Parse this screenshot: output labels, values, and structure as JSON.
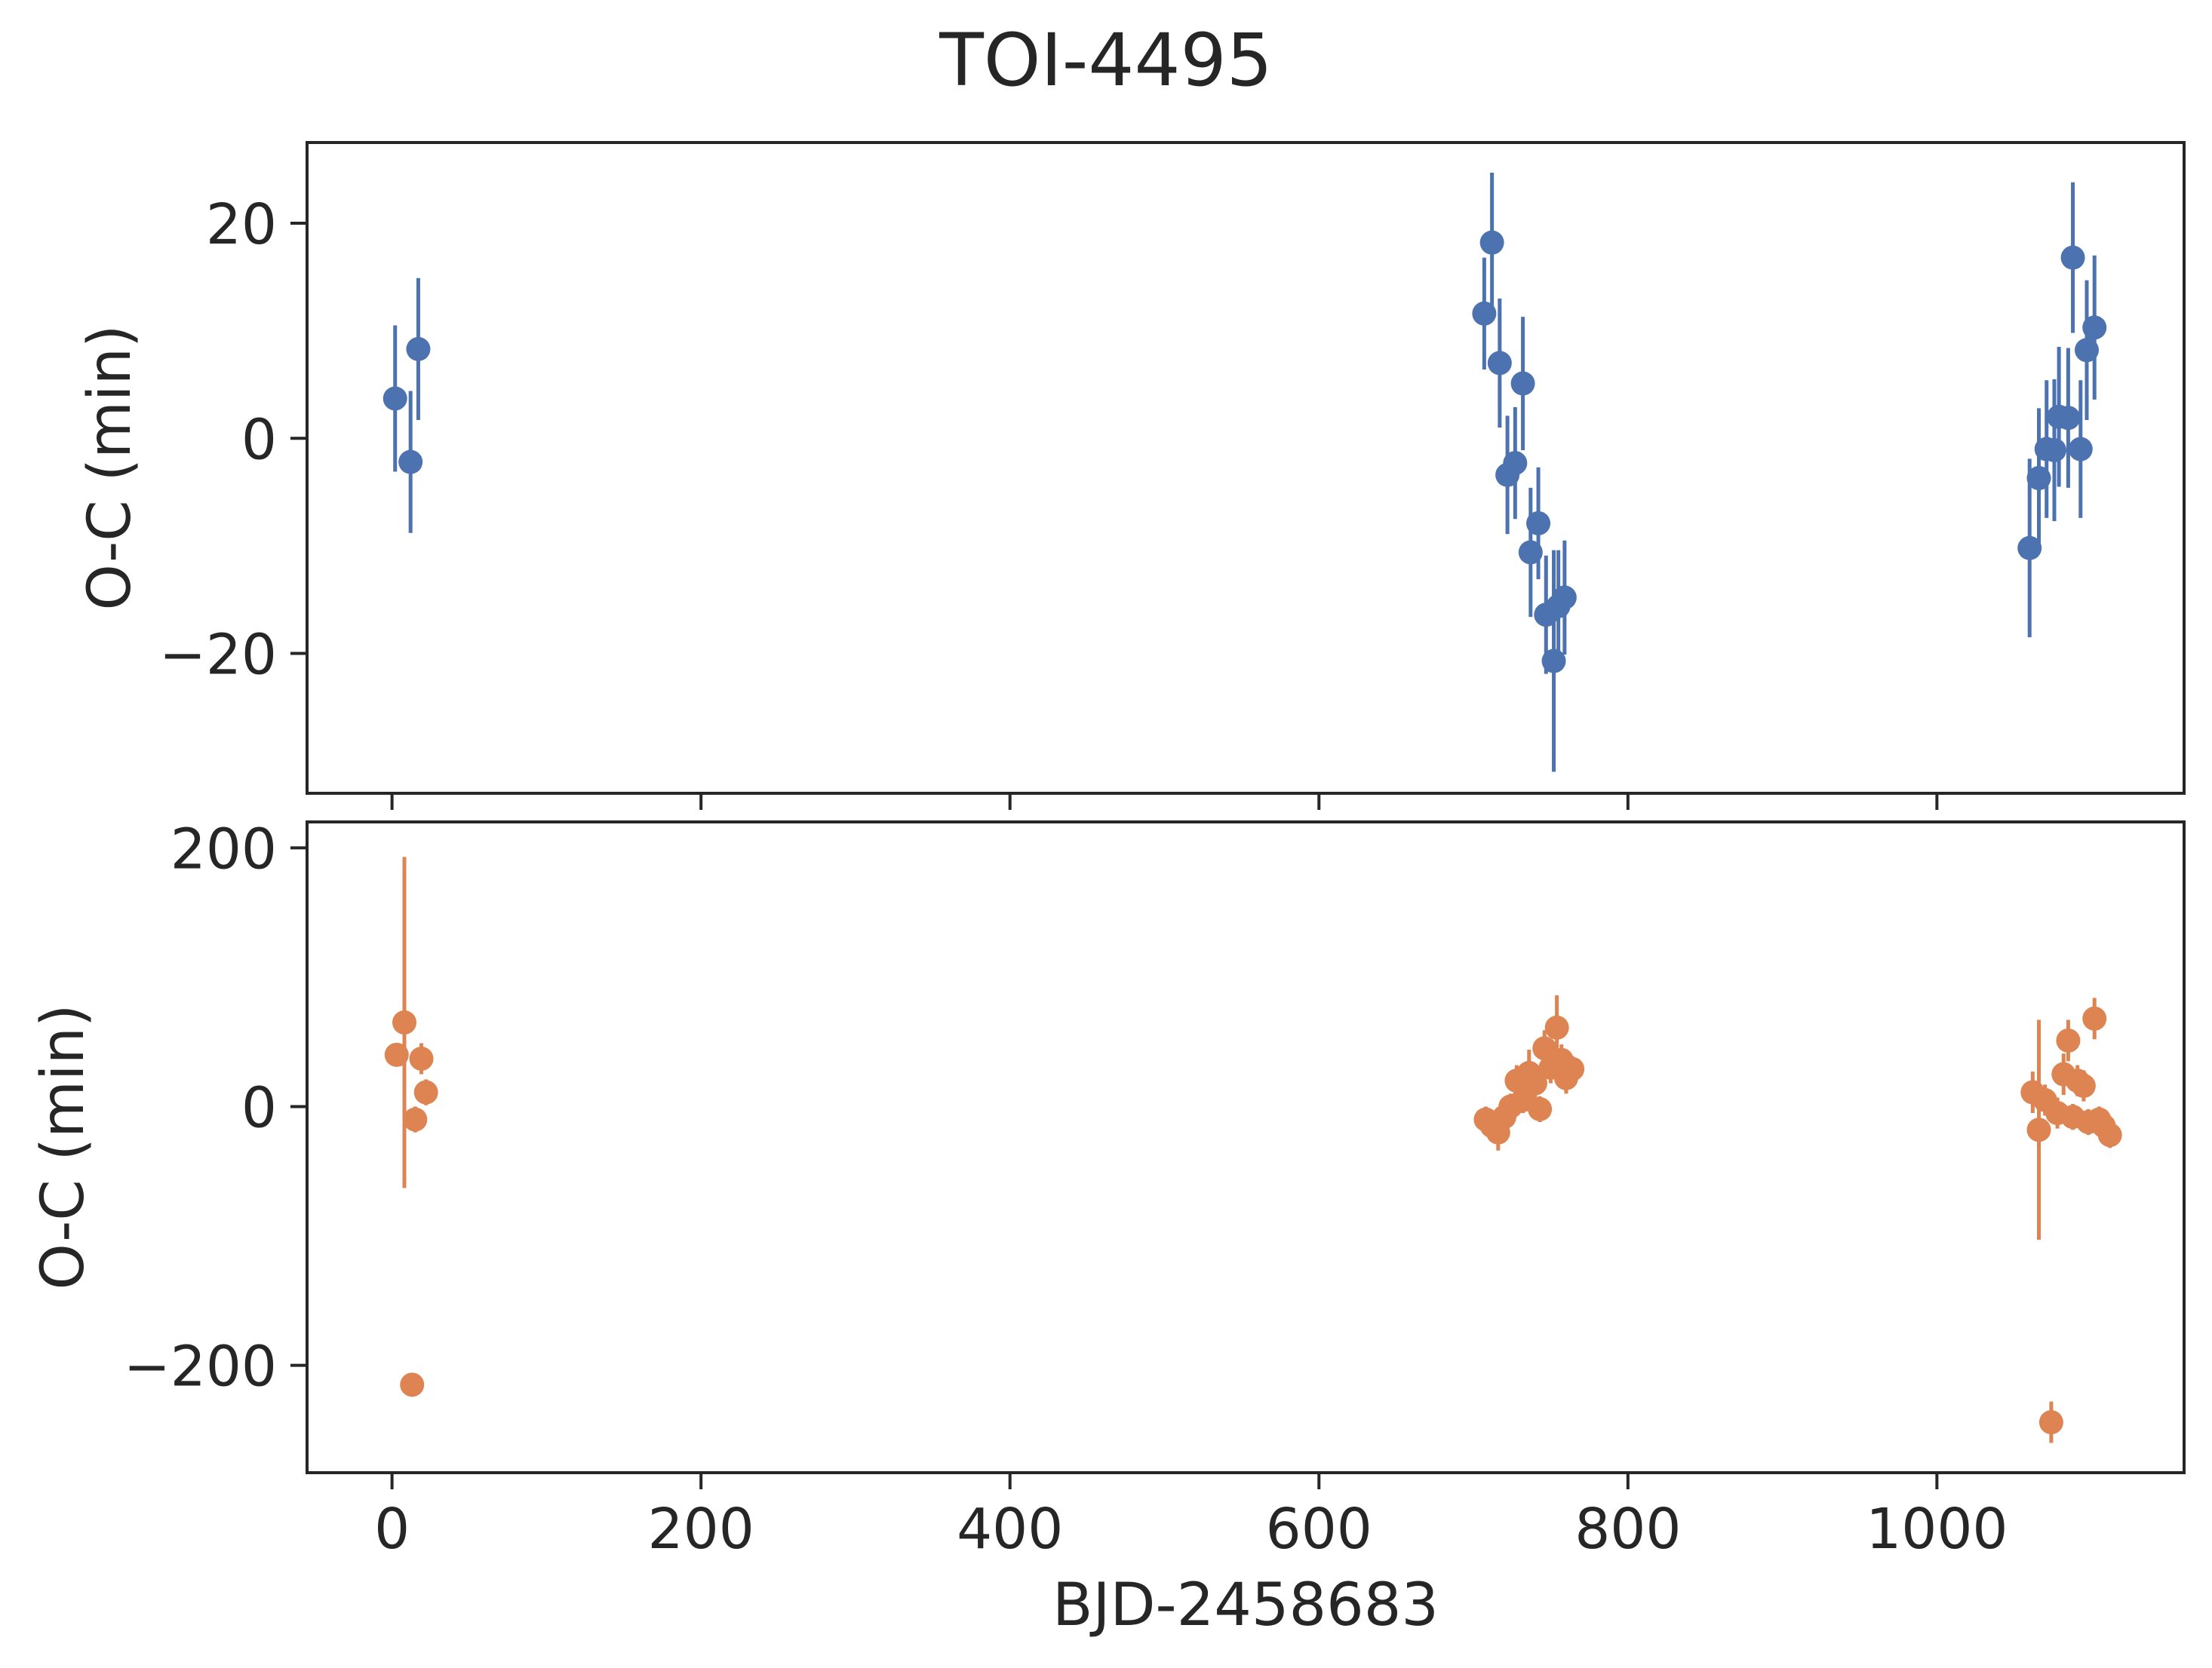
{
  "chart_data": {
    "type": "scatter",
    "title": "TOI-4495",
    "xlabel": "BJD-2458683",
    "xlim": [
      -55,
      1160
    ],
    "x_ticks": [
      0,
      200,
      400,
      600,
      800,
      1000
    ],
    "panels": [
      {
        "name": "top",
        "ylabel": "O-C (min)",
        "ylim": [
          -33,
          27.5
        ],
        "y_ticks": [
          20,
          0,
          -20
        ],
        "y_tick_labels": [
          "20",
          "0",
          "−20"
        ],
        "color": "#4c72b0",
        "points": [
          {
            "x": 2,
            "y": 3.7,
            "err": 6.8
          },
          {
            "x": 12,
            "y": -2.2,
            "err": 6.6
          },
          {
            "x": 17,
            "y": 8.3,
            "err": 6.6
          },
          {
            "x": 707,
            "y": 11.6,
            "err": 5.2
          },
          {
            "x": 712,
            "y": 18.2,
            "err": 6.5
          },
          {
            "x": 717,
            "y": 7.0,
            "err": 6.0
          },
          {
            "x": 722,
            "y": -3.4,
            "err": 5.5
          },
          {
            "x": 727,
            "y": -2.3,
            "err": 5.2
          },
          {
            "x": 732,
            "y": 5.1,
            "err": 6.2
          },
          {
            "x": 737,
            "y": -10.6,
            "err": 6.0
          },
          {
            "x": 742,
            "y": -7.9,
            "err": 5.2
          },
          {
            "x": 747,
            "y": -16.4,
            "err": 5.5
          },
          {
            "x": 752,
            "y": -20.7,
            "err": 10.3
          },
          {
            "x": 755,
            "y": -15.6,
            "err": 5.2
          },
          {
            "x": 759,
            "y": -14.8,
            "err": 5.3
          },
          {
            "x": 1060,
            "y": -10.2,
            "err": 8.3
          },
          {
            "x": 1066,
            "y": -3.7,
            "err": 6.5
          },
          {
            "x": 1071,
            "y": -1.0,
            "err": 6.4
          },
          {
            "x": 1076,
            "y": -1.1,
            "err": 6.6
          },
          {
            "x": 1079,
            "y": 2.0,
            "err": 6.5
          },
          {
            "x": 1085,
            "y": 1.9,
            "err": 6.5
          },
          {
            "x": 1088,
            "y": 16.8,
            "err": 7.0
          },
          {
            "x": 1093,
            "y": -1.0,
            "err": 6.4
          },
          {
            "x": 1097,
            "y": 8.2,
            "err": 6.5
          },
          {
            "x": 1102,
            "y": 10.3,
            "err": 6.7
          }
        ]
      },
      {
        "name": "bottom",
        "ylabel": "O-C (min)",
        "ylim": [
          -283,
          220
        ],
        "y_ticks": [
          200,
          0,
          -200
        ],
        "y_tick_labels": [
          "200",
          "0",
          "−200"
        ],
        "color": "#dd8452",
        "points": [
          {
            "x": 3,
            "y": 40,
            "err": 8
          },
          {
            "x": 8,
            "y": 65,
            "err": 128
          },
          {
            "x": 13,
            "y": -215,
            "err": 6
          },
          {
            "x": 15,
            "y": -10,
            "err": 10
          },
          {
            "x": 19,
            "y": 37,
            "err": 12
          },
          {
            "x": 22,
            "y": 11,
            "err": 10
          },
          {
            "x": 708,
            "y": -10,
            "err": 10
          },
          {
            "x": 712,
            "y": -15,
            "err": 10
          },
          {
            "x": 716,
            "y": -20,
            "err": 14
          },
          {
            "x": 720,
            "y": -8,
            "err": 12
          },
          {
            "x": 724,
            "y": 0,
            "err": 10
          },
          {
            "x": 728,
            "y": 20,
            "err": 12
          },
          {
            "x": 732,
            "y": 5,
            "err": 10
          },
          {
            "x": 736,
            "y": 26,
            "err": 18
          },
          {
            "x": 740,
            "y": 18,
            "err": 14
          },
          {
            "x": 743,
            "y": -2,
            "err": 10
          },
          {
            "x": 746,
            "y": 45,
            "err": 14
          },
          {
            "x": 750,
            "y": 30,
            "err": 12
          },
          {
            "x": 754,
            "y": 61,
            "err": 25
          },
          {
            "x": 757,
            "y": 36,
            "err": 12
          },
          {
            "x": 760,
            "y": 22,
            "err": 12
          },
          {
            "x": 764,
            "y": 29,
            "err": 10
          },
          {
            "x": 1062,
            "y": 11,
            "err": 16
          },
          {
            "x": 1066,
            "y": -18,
            "err": 85
          },
          {
            "x": 1070,
            "y": 5,
            "err": 12
          },
          {
            "x": 1074,
            "y": -244,
            "err": 16
          },
          {
            "x": 1078,
            "y": -5,
            "err": 12
          },
          {
            "x": 1082,
            "y": 25,
            "err": 16
          },
          {
            "x": 1085,
            "y": 51,
            "err": 16
          },
          {
            "x": 1088,
            "y": -8,
            "err": 10
          },
          {
            "x": 1091,
            "y": 20,
            "err": 12
          },
          {
            "x": 1095,
            "y": 16,
            "err": 12
          },
          {
            "x": 1098,
            "y": -12,
            "err": 10
          },
          {
            "x": 1102,
            "y": 68,
            "err": 16
          },
          {
            "x": 1105,
            "y": -10,
            "err": 10
          },
          {
            "x": 1108,
            "y": -15,
            "err": 10
          },
          {
            "x": 1112,
            "y": -22,
            "err": 10
          }
        ]
      }
    ]
  }
}
